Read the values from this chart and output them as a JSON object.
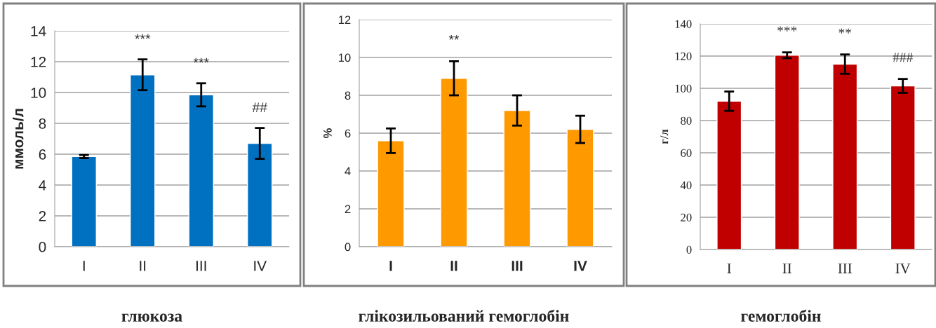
{
  "chart_data": [
    {
      "type": "bar",
      "title": "глюкоза",
      "ylabel": "ммоль/л",
      "categories": [
        "I",
        "II",
        "III",
        "IV"
      ],
      "color": "#0070c0",
      "values": [
        5.85,
        11.15,
        9.85,
        6.7
      ],
      "errors": [
        0.1,
        1.0,
        0.75,
        1.0
      ],
      "ylim": [
        0,
        14
      ],
      "yticks": [
        0,
        2,
        4,
        6,
        8,
        10,
        12,
        14
      ],
      "grid": "y",
      "legend": false,
      "value_labels": [
        null,
        "***",
        "***",
        "##"
      ]
    },
    {
      "type": "bar",
      "title": "глікозильований гемоглобін",
      "ylabel": "%",
      "categories": [
        "I",
        "II",
        "III",
        "IV"
      ],
      "color": "#ff9900",
      "values": [
        5.6,
        8.9,
        7.2,
        6.2
      ],
      "errors": [
        0.65,
        0.9,
        0.8,
        0.72
      ],
      "ylim": [
        0,
        12
      ],
      "yticks": [
        0,
        2,
        4,
        6,
        8,
        10,
        12
      ],
      "grid": "y",
      "legend": false,
      "value_labels": [
        null,
        "**",
        null,
        null
      ]
    },
    {
      "type": "bar",
      "title": "гемоглобін",
      "ylabel": "г/л",
      "categories": [
        "I",
        "II",
        "III",
        "IV"
      ],
      "color": "#c00000",
      "values": [
        92,
        120.5,
        115,
        101.5
      ],
      "errors": [
        6,
        1.8,
        6,
        4.3
      ],
      "ylim": [
        0,
        140
      ],
      "yticks": [
        0,
        20,
        40,
        60,
        80,
        100,
        120,
        140
      ],
      "grid": "y",
      "legend": false,
      "value_labels": [
        null,
        "***",
        "**",
        "###"
      ]
    }
  ]
}
